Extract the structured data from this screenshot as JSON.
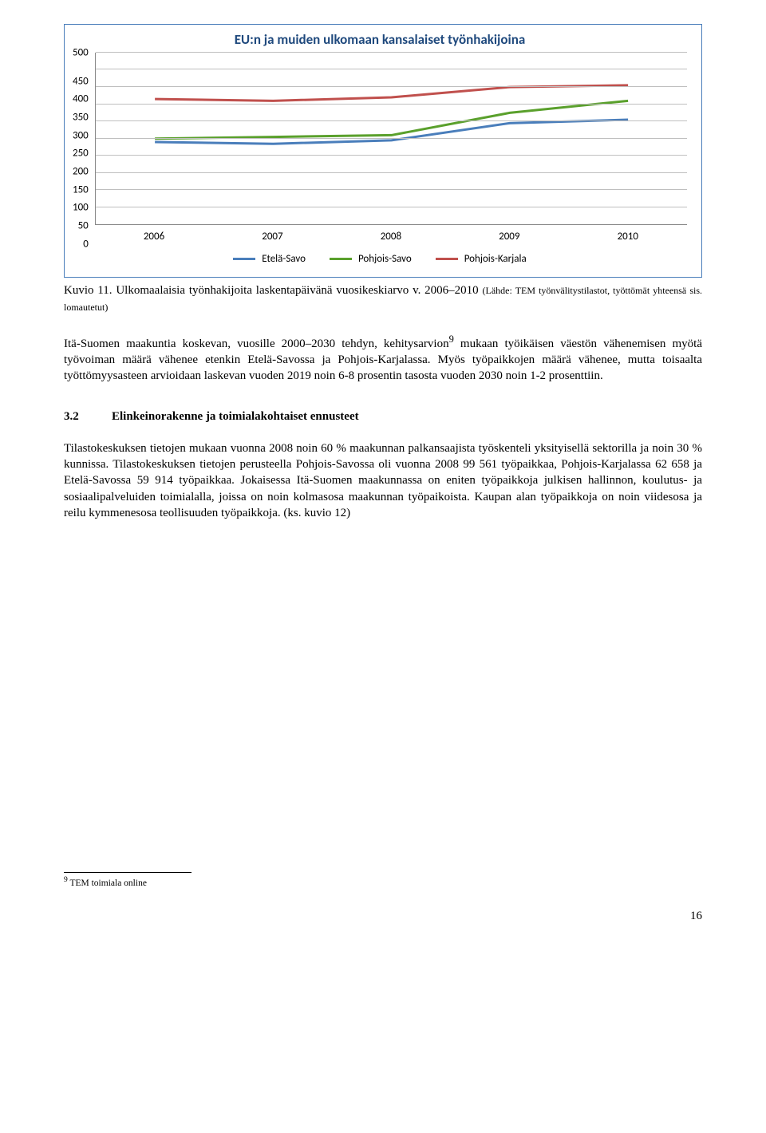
{
  "chart": {
    "type": "line",
    "title": "EU:n ja muiden ulkomaan kansalaiset työnhakijoina",
    "title_fontsize": 17,
    "title_color": "#1f497d",
    "border_color": "#4a7ebb",
    "background_color": "#ffffff",
    "grid_color": "#bfbfbf",
    "axis_color": "#888888",
    "ylim": [
      0,
      500
    ],
    "ytick_step": 50,
    "yticks": [
      "500",
      "450",
      "400",
      "350",
      "300",
      "250",
      "200",
      "150",
      "100",
      "50",
      "0"
    ],
    "xticks": [
      "2006",
      "2007",
      "2008",
      "2009",
      "2010"
    ],
    "tick_fontsize": 13,
    "line_width": 3,
    "series": [
      {
        "name": "Etelä-Savo",
        "color": "#4a7ebb",
        "values": [
          240,
          235,
          245,
          295,
          305
        ]
      },
      {
        "name": "Pohjois-Savo",
        "color": "#5aa02c",
        "values": [
          250,
          255,
          260,
          325,
          360
        ]
      },
      {
        "name": "Pohjois-Karjala",
        "color": "#c0504d",
        "values": [
          365,
          360,
          370,
          400,
          405
        ]
      }
    ],
    "legend_position": "bottom"
  },
  "caption": {
    "label": "Kuvio 11. Ulkomaalaisia työnhakijoita laskentapäivänä vuosikeskiarvo v. 2006–2010 ",
    "small": "(Lähde: TEM työnvälitystilastot, työttömät yhteensä sis. lomautetut)"
  },
  "para1": "Itä-Suomen maakuntia koskevan, vuosille 2000–2030 tehdyn, kehitysarvion",
  "para1_sup": "9",
  "para1_cont": " mukaan työikäisen väestön vähenemisen myötä työvoiman määrä vähenee etenkin Etelä-Savossa ja Pohjois-Karjalassa. Myös työpaikkojen määrä vähenee, mutta toisaalta työttömyysasteen arvioidaan laskevan vuoden 2019 noin 6-8 prosentin tasosta vuoden 2030 noin 1-2 prosenttiin.",
  "section": {
    "number": "3.2",
    "title": "Elinkeinorakenne ja toimialakohtaiset ennusteet"
  },
  "para2": "Tilastokeskuksen tietojen mukaan vuonna 2008 noin 60 % maakunnan palkansaajista työskenteli yksityisellä sektorilla ja noin 30 % kunnissa. Tilastokeskuksen tietojen perusteella Pohjois-Savossa oli vuonna 2008 99 561 työpaikkaa, Pohjois-Karjalassa 62 658 ja Etelä-Savossa 59 914 työpaikkaa. Jokaisessa Itä-Suomen maakunnassa on eniten työpaikkoja julkisen hallinnon, koulutus- ja sosiaalipalveluiden toimialalla, joissa on noin kolmasosa maakunnan työpaikoista. Kaupan alan työpaikkoja on noin viidesosa ja reilu kymmenesosa teollisuuden työpaikkoja. (ks. kuvio 12)",
  "footnote": {
    "marker": "9",
    "text": " TEM toimiala online"
  },
  "page_number": "16"
}
